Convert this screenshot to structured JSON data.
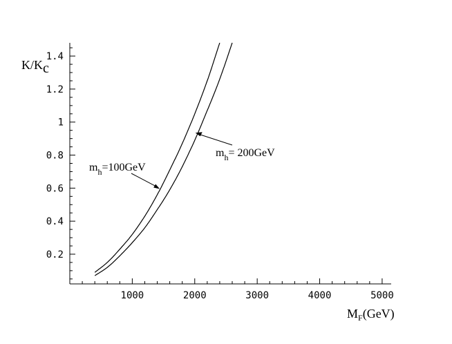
{
  "chart_data": {
    "type": "line",
    "xlabel_main": "M",
    "xlabel_sub": "F",
    "xlabel_rest": "(GeV)",
    "ylabel_main": "K/K",
    "ylabel_sub": "c",
    "xlim": [
      0,
      5200
    ],
    "ylim": [
      0.02,
      1.48
    ],
    "x_ticks": [
      1000,
      2000,
      3000,
      4000,
      5000
    ],
    "x_tick_labels": [
      "1000",
      "2000",
      "3000",
      "4000",
      "5000"
    ],
    "y_ticks": [
      0.2,
      0.4,
      0.6,
      0.8,
      1.0,
      1.2,
      1.4
    ],
    "y_tick_labels": [
      "0.2",
      "0.4",
      "0.6",
      "0.8",
      "1",
      "1.2",
      "1.4"
    ],
    "series": [
      {
        "label_main": "m",
        "label_sub": "h",
        "label_rest": "=100GeV",
        "x": [
          400,
          600,
          800,
          1000,
          1200,
          1400,
          1600,
          1800,
          2000,
          2200,
          2400
        ],
        "y": [
          0.09,
          0.15,
          0.23,
          0.32,
          0.43,
          0.56,
          0.71,
          0.87,
          1.05,
          1.25,
          1.48
        ]
      },
      {
        "label_main": "m",
        "label_sub": "h",
        "label_rest": "= 200GeV",
        "x": [
          400,
          600,
          800,
          1000,
          1200,
          1400,
          1600,
          1800,
          2000,
          2200,
          2400,
          2600
        ],
        "y": [
          0.07,
          0.12,
          0.19,
          0.27,
          0.36,
          0.47,
          0.59,
          0.73,
          0.89,
          1.07,
          1.26,
          1.48
        ]
      }
    ],
    "annotations": [
      {
        "target_series": 0,
        "target_x": 1440,
        "target_y": 0.595
      },
      {
        "target_series": 1,
        "target_x": 2010,
        "target_y": 0.935
      }
    ],
    "grid": false,
    "legend": "none"
  }
}
